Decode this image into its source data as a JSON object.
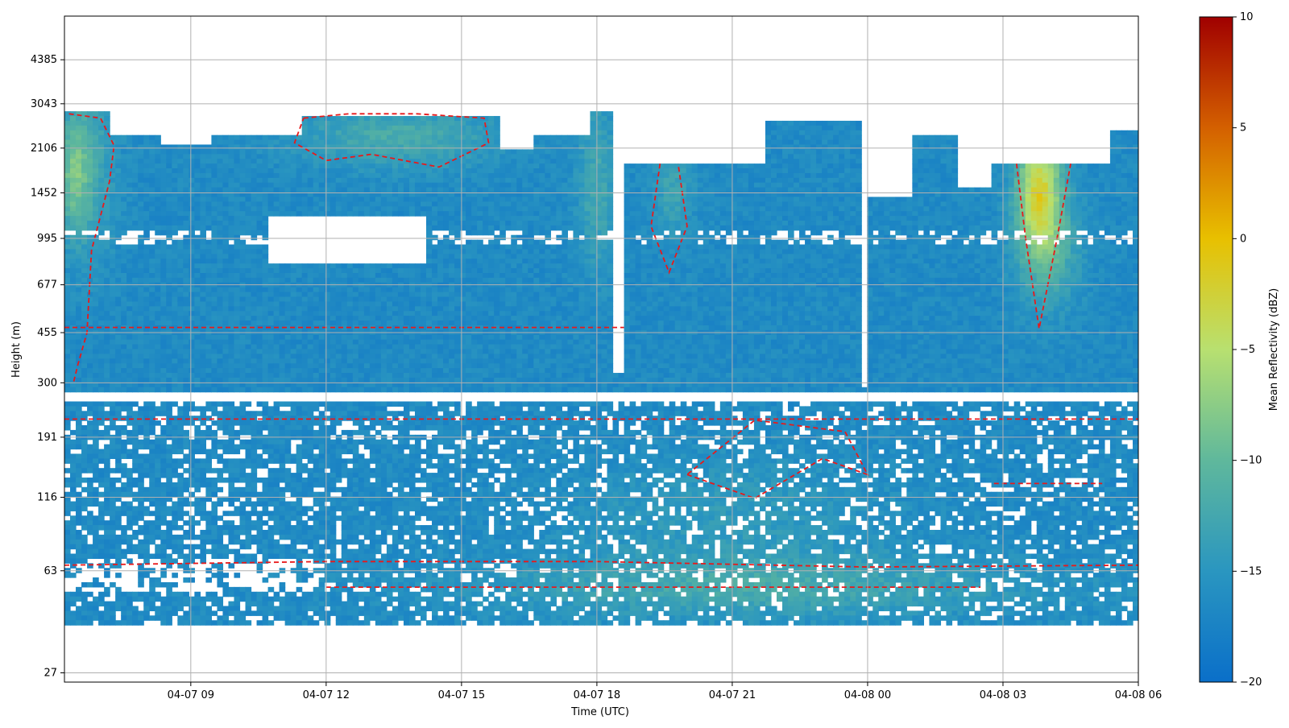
{
  "chart_data": {
    "type": "heatmap",
    "xlabel": "Time (UTC)",
    "ylabel": "Height (m)",
    "x_ticks": [
      "04-07 09",
      "04-07 12",
      "04-07 15",
      "04-07 18",
      "04-07 21",
      "04-08 00",
      "04-08 03",
      "04-08 06"
    ],
    "x_tick_hours": [
      9,
      12,
      15,
      18,
      21,
      24,
      27,
      30
    ],
    "xlim_hours": [
      6.2,
      30
    ],
    "y_ticks": [
      "27",
      "63",
      "116",
      "191",
      "300",
      "455",
      "677",
      "995",
      "1452",
      "2106",
      "3043",
      "4385"
    ],
    "y_tick_values": [
      27,
      63,
      116,
      191,
      300,
      455,
      677,
      995,
      1452,
      2106,
      3043,
      4385
    ],
    "ylim": [
      25,
      6300
    ],
    "y_scale": "log",
    "grid": true,
    "colorbar": {
      "label": "Mean Reflectivity (dBZ)",
      "ticks": [
        "10",
        "5",
        "0",
        "−5",
        "−10",
        "−15",
        "−20"
      ],
      "tick_values": [
        10,
        5,
        0,
        -5,
        -10,
        -15,
        -20
      ],
      "range": [
        -20,
        10
      ],
      "colors": [
        "#0a6fc9",
        "#2a96c0",
        "#5fb89c",
        "#b8e070",
        "#e8c000",
        "#d46000",
        "#a00000"
      ]
    },
    "contour_color": "#e8191a",
    "contour_style": "dashed"
  }
}
